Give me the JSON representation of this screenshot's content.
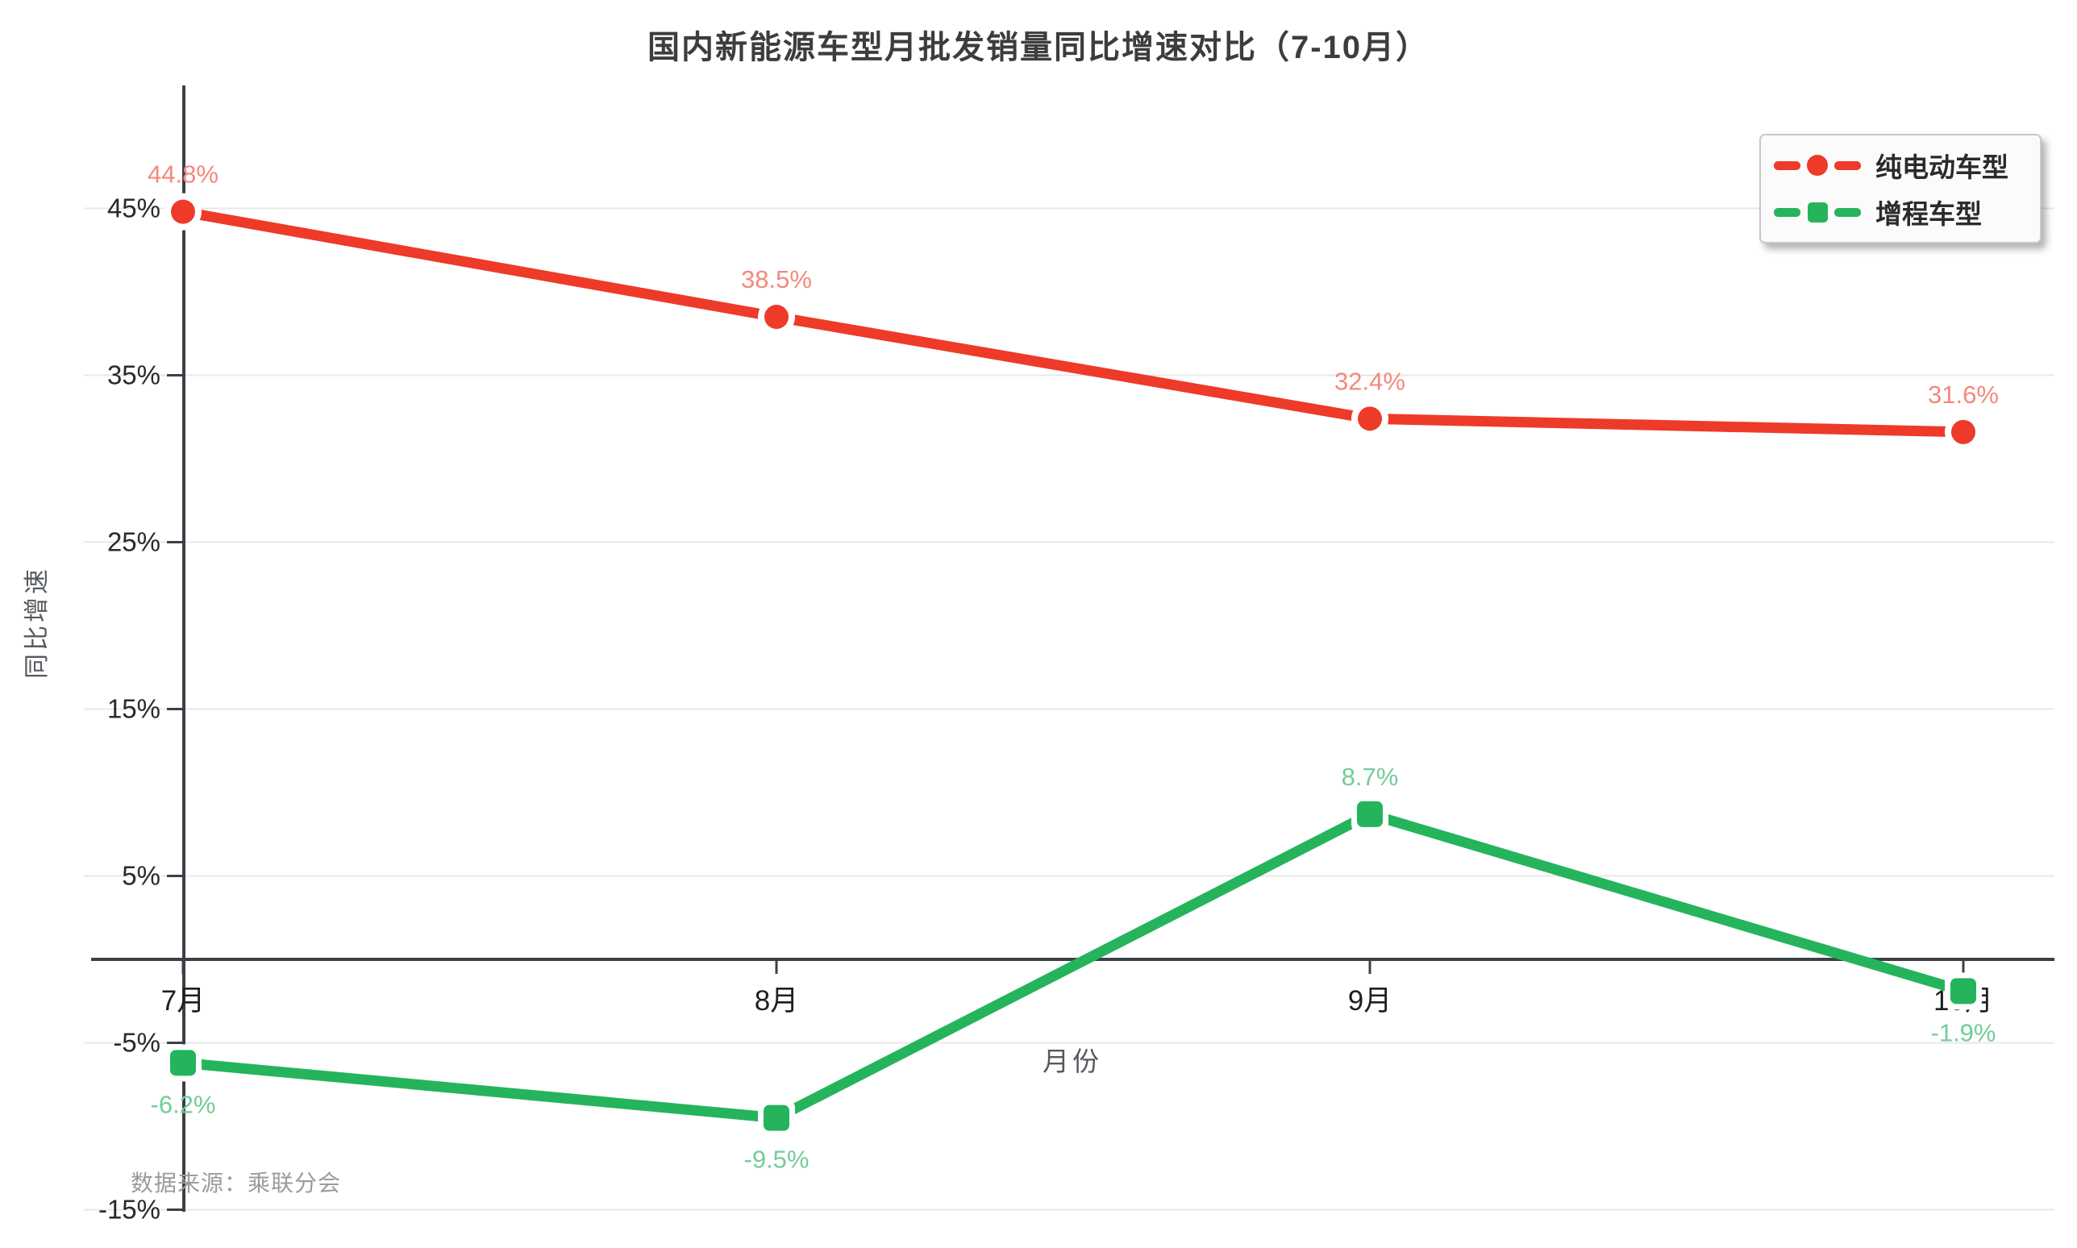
{
  "title": "国内新能源车型月批发销量同比增速对比（7-10月）",
  "source_note": "数据来源：乘联分会",
  "legend": {
    "position": "top-right",
    "items": [
      {
        "label": "纯电动车型",
        "color": "#ee3a28",
        "marker": "circle"
      },
      {
        "label": "增程车型",
        "color": "#25b45c",
        "marker": "square"
      }
    ]
  },
  "chart_data": {
    "type": "line",
    "title": "国内新能源车型月批发销量同比增速对比（7-10月）",
    "xlabel": "月份",
    "ylabel": "同比增速",
    "categories": [
      "7月",
      "8月",
      "9月",
      "10月"
    ],
    "series": [
      {
        "name": "纯电动车型",
        "marker": "circle",
        "color": "#ee3a28",
        "label_color": "#f4897c",
        "values": [
          44.8,
          38.5,
          32.4,
          31.6
        ],
        "labels": [
          "44.8%",
          "38.5%",
          "32.4%",
          "31.6%"
        ]
      },
      {
        "name": "增程车型",
        "marker": "square",
        "color": "#25b45c",
        "label_color": "#74cc99",
        "values": [
          -6.2,
          -9.5,
          8.7,
          -1.9
        ],
        "labels": [
          "-6.2%",
          "-9.5%",
          "8.7%",
          "-1.9%"
        ]
      }
    ],
    "ylim": [
      -15,
      45
    ],
    "y_tick_values": [
      45,
      35,
      25,
      15,
      5,
      -5,
      -15
    ],
    "y_ticks": [
      "45%",
      "35%",
      "25%",
      "15%",
      "5%",
      "-5%",
      "-15%"
    ],
    "grid": true,
    "legend_position": "top-right",
    "colors": {
      "grid_line": "#e8e8e8",
      "axis_line": "#3b4048",
      "tick_label": "#2a2a2a",
      "axis_title": "#555a60"
    }
  }
}
